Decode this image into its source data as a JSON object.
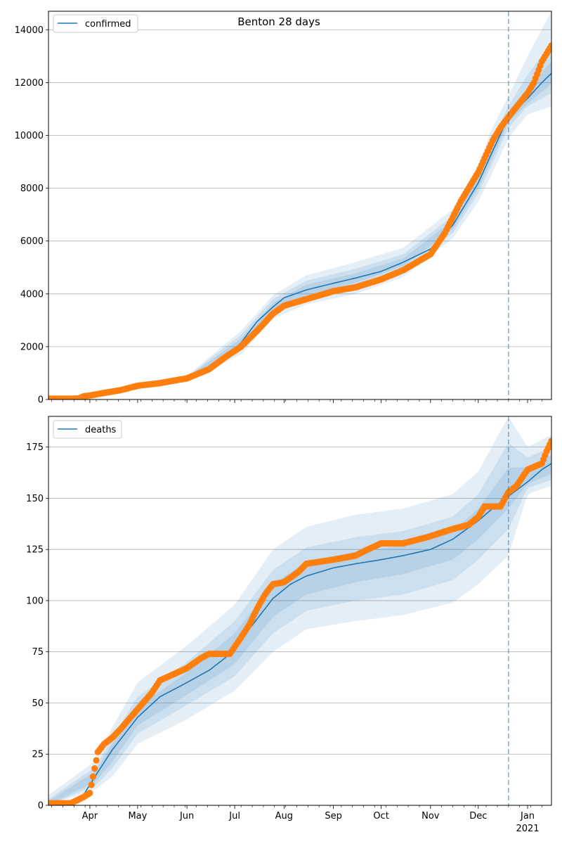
{
  "title": "Benton 28 days",
  "colors": {
    "model": "#1f77b4",
    "observed": "#ff7f0e",
    "band": "#1f77b4",
    "grid": "#b0b0b0",
    "cutoff": "#1f77b4"
  },
  "x_ticks": [
    {
      "month": 4,
      "label": "Apr",
      "year_label": ""
    },
    {
      "month": 5,
      "label": "May",
      "year_label": ""
    },
    {
      "month": 6,
      "label": "Jun",
      "year_label": ""
    },
    {
      "month": 7,
      "label": "Jul",
      "year_label": ""
    },
    {
      "month": 8,
      "label": "Aug",
      "year_label": ""
    },
    {
      "month": 9,
      "label": "Sep",
      "year_label": ""
    },
    {
      "month": 10,
      "label": "Oct",
      "year_label": ""
    },
    {
      "month": 11,
      "label": "Nov",
      "year_label": ""
    },
    {
      "month": 12,
      "label": "Dec",
      "year_label": ""
    },
    {
      "month": 13,
      "label": "Jan",
      "year_label": "2021"
    }
  ],
  "chart_data": [
    {
      "type": "line",
      "title": "Benton 28 days",
      "legend": {
        "label": "confirmed",
        "placement": "top-left"
      },
      "xlim": [
        "2020-03-06",
        "2021-01-16"
      ],
      "ylim": [
        0,
        14700
      ],
      "yticks": [
        0,
        2000,
        4000,
        6000,
        8000,
        10000,
        12000,
        14000
      ],
      "grid": "horizontal",
      "forecast_start": "2020-12-20",
      "model_series": {
        "name": "confirmed",
        "x": [
          "2020-03-06",
          "2020-03-20",
          "2020-03-27",
          "2020-04-01",
          "2020-04-15",
          "2020-05-01",
          "2020-05-15",
          "2020-06-01",
          "2020-06-15",
          "2020-06-25",
          "2020-07-05",
          "2020-07-15",
          "2020-07-25",
          "2020-08-01",
          "2020-08-15",
          "2020-09-01",
          "2020-09-15",
          "2020-10-01",
          "2020-10-15",
          "2020-11-01",
          "2020-11-15",
          "2020-12-01",
          "2020-12-10",
          "2020-12-20",
          "2021-01-01",
          "2021-01-10",
          "2021-01-16"
        ],
        "values": [
          0,
          20,
          40,
          100,
          280,
          500,
          640,
          800,
          1150,
          1550,
          2150,
          2950,
          3500,
          3850,
          4150,
          4400,
          4600,
          4850,
          5200,
          5700,
          6600,
          8200,
          9400,
          10700,
          11400,
          12000,
          12350
        ]
      },
      "bands": [
        {
          "label": "outer",
          "x": [
            "2020-03-06",
            "2020-04-15",
            "2020-06-01",
            "2020-07-05",
            "2020-07-25",
            "2020-08-15",
            "2020-09-15",
            "2020-10-15",
            "2020-11-15",
            "2020-12-01",
            "2020-12-10",
            "2020-12-20",
            "2021-01-01",
            "2021-01-16"
          ],
          "upper": [
            0,
            350,
            900,
            2600,
            3950,
            4700,
            5200,
            5750,
            7200,
            8900,
            10300,
            11500,
            13000,
            14700
          ],
          "lower": [
            0,
            220,
            720,
            1700,
            3050,
            3600,
            4000,
            4650,
            6100,
            7500,
            8600,
            9900,
            10800,
            11100
          ]
        },
        {
          "label": "middle",
          "x": [
            "2020-03-06",
            "2020-04-15",
            "2020-06-01",
            "2020-07-05",
            "2020-07-25",
            "2020-08-15",
            "2020-09-15",
            "2020-10-15",
            "2020-11-15",
            "2020-12-01",
            "2020-12-10",
            "2020-12-20",
            "2021-01-01",
            "2021-01-16"
          ],
          "upper": [
            0,
            320,
            860,
            2450,
            3800,
            4500,
            4950,
            5500,
            6950,
            8600,
            9900,
            11100,
            12300,
            13500
          ],
          "lower": [
            0,
            240,
            750,
            1850,
            3200,
            3800,
            4250,
            4900,
            6300,
            7800,
            8950,
            10300,
            11100,
            11600
          ]
        },
        {
          "label": "inner",
          "x": [
            "2020-03-06",
            "2020-04-15",
            "2020-06-01",
            "2020-07-05",
            "2020-07-25",
            "2020-08-15",
            "2020-09-15",
            "2020-10-15",
            "2020-11-15",
            "2020-12-01",
            "2020-12-10",
            "2020-12-20",
            "2021-01-01",
            "2021-01-16"
          ],
          "upper": [
            0,
            300,
            830,
            2300,
            3650,
            4350,
            4780,
            5350,
            6780,
            8400,
            9650,
            10900,
            11800,
            12800
          ],
          "lower": [
            0,
            260,
            770,
            2000,
            3350,
            3950,
            4420,
            5050,
            6450,
            8000,
            9150,
            10500,
            11200,
            11950
          ]
        }
      ],
      "observed_series": {
        "name": "observed",
        "x": [
          "2020-03-06",
          "2020-03-20",
          "2020-03-25",
          "2020-03-28",
          "2020-04-01",
          "2020-04-10",
          "2020-04-20",
          "2020-05-01",
          "2020-05-15",
          "2020-06-01",
          "2020-06-15",
          "2020-06-25",
          "2020-07-05",
          "2020-07-15",
          "2020-07-25",
          "2020-08-01",
          "2020-08-15",
          "2020-09-01",
          "2020-09-15",
          "2020-10-01",
          "2020-10-15",
          "2020-11-01",
          "2020-11-10",
          "2020-11-20",
          "2020-12-01",
          "2020-12-10",
          "2020-12-15",
          "2020-12-20",
          "2021-01-01",
          "2021-01-05",
          "2021-01-10",
          "2021-01-16"
        ],
        "values": [
          30,
          30,
          40,
          120,
          150,
          250,
          350,
          520,
          620,
          800,
          1150,
          1600,
          2000,
          2600,
          3250,
          3550,
          3800,
          4100,
          4250,
          4550,
          4900,
          5500,
          6300,
          7500,
          8600,
          9800,
          10300,
          10700,
          11600,
          12000,
          12800,
          13400
        ]
      }
    },
    {
      "type": "line",
      "title": "",
      "legend": {
        "label": "deaths",
        "placement": "top-left"
      },
      "xlim": [
        "2020-03-06",
        "2021-01-16"
      ],
      "ylim": [
        0,
        190
      ],
      "yticks": [
        0,
        25,
        50,
        75,
        100,
        125,
        150,
        175
      ],
      "grid": "horizontal",
      "forecast_start": "2020-12-20",
      "model_series": {
        "name": "deaths",
        "x": [
          "2020-03-06",
          "2020-03-20",
          "2020-03-28",
          "2020-04-05",
          "2020-04-15",
          "2020-05-01",
          "2020-05-15",
          "2020-06-01",
          "2020-06-15",
          "2020-06-25",
          "2020-07-05",
          "2020-07-15",
          "2020-07-25",
          "2020-08-05",
          "2020-08-15",
          "2020-09-01",
          "2020-09-15",
          "2020-10-01",
          "2020-10-15",
          "2020-11-01",
          "2020-11-15",
          "2020-12-01",
          "2020-12-10",
          "2020-12-20",
          "2021-01-01",
          "2021-01-10",
          "2021-01-16"
        ],
        "values": [
          0,
          1,
          5,
          15,
          27,
          43,
          53,
          60,
          66,
          72,
          81,
          91,
          101,
          108,
          112,
          116,
          118,
          120,
          122,
          125,
          130,
          139,
          145,
          151,
          158,
          164,
          167
        ]
      },
      "bands": [
        {
          "label": "outer",
          "x": [
            "2020-03-06",
            "2020-04-05",
            "2020-04-15",
            "2020-05-01",
            "2020-06-01",
            "2020-07-01",
            "2020-07-25",
            "2020-08-15",
            "2020-09-15",
            "2020-10-15",
            "2020-11-15",
            "2020-12-01",
            "2020-12-20",
            "2021-01-01",
            "2021-01-16"
          ],
          "upper": [
            5,
            22,
            38,
            60,
            78,
            98,
            125,
            136,
            142,
            145,
            152,
            163,
            190,
            175,
            181
          ],
          "lower": [
            0,
            8,
            14,
            30,
            42,
            56,
            75,
            86,
            90,
            93,
            99,
            108,
            122,
            152,
            156
          ]
        },
        {
          "label": "middle",
          "x": [
            "2020-03-06",
            "2020-04-05",
            "2020-04-15",
            "2020-05-01",
            "2020-06-01",
            "2020-07-01",
            "2020-07-25",
            "2020-08-15",
            "2020-09-15",
            "2020-10-15",
            "2020-11-15",
            "2020-12-01",
            "2020-12-20",
            "2021-01-01",
            "2021-01-16"
          ],
          "upper": [
            3,
            19,
            33,
            53,
            70,
            90,
            115,
            126,
            131,
            134,
            141,
            152,
            177,
            170,
            175
          ],
          "lower": [
            0,
            10,
            18,
            35,
            49,
            63,
            84,
            95,
            100,
            103,
            110,
            120,
            135,
            155,
            159
          ]
        },
        {
          "label": "inner",
          "x": [
            "2020-03-06",
            "2020-04-05",
            "2020-04-15",
            "2020-05-01",
            "2020-06-01",
            "2020-07-01",
            "2020-07-25",
            "2020-08-15",
            "2020-09-15",
            "2020-10-15",
            "2020-11-15",
            "2020-12-01",
            "2020-12-20",
            "2021-01-01",
            "2021-01-16"
          ],
          "upper": [
            2,
            17,
            30,
            48,
            65,
            84,
            108,
            119,
            124,
            127,
            134,
            145,
            165,
            165,
            171
          ],
          "lower": [
            0,
            12,
            21,
            39,
            54,
            69,
            92,
            103,
            109,
            113,
            120,
            130,
            145,
            157,
            162
          ]
        }
      ],
      "observed_series": {
        "name": "observed",
        "x": [
          "2020-03-06",
          "2020-03-20",
          "2020-03-28",
          "2020-04-01",
          "2020-04-04",
          "2020-04-06",
          "2020-04-10",
          "2020-04-15",
          "2020-04-20",
          "2020-05-01",
          "2020-05-10",
          "2020-05-15",
          "2020-06-01",
          "2020-06-10",
          "2020-06-15",
          "2020-06-25",
          "2020-06-28",
          "2020-07-05",
          "2020-07-10",
          "2020-07-15",
          "2020-07-20",
          "2020-07-25",
          "2020-08-01",
          "2020-08-10",
          "2020-08-15",
          "2020-09-01",
          "2020-09-15",
          "2020-09-20",
          "2020-10-01",
          "2020-10-15",
          "2020-10-30",
          "2020-11-15",
          "2020-11-25",
          "2020-12-01",
          "2020-12-05",
          "2020-12-15",
          "2020-12-20",
          "2020-12-25",
          "2021-01-01",
          "2021-01-10",
          "2021-01-13",
          "2021-01-16"
        ],
        "values": [
          1,
          1,
          4,
          6,
          18,
          26,
          30,
          33,
          37,
          47,
          55,
          61,
          67,
          72,
          74,
          74,
          74,
          82,
          88,
          96,
          103,
          108,
          109,
          114,
          118,
          120,
          122,
          124,
          128,
          128,
          131,
          135,
          137,
          141,
          146,
          146,
          153,
          156,
          164,
          167,
          173,
          178
        ]
      }
    }
  ]
}
